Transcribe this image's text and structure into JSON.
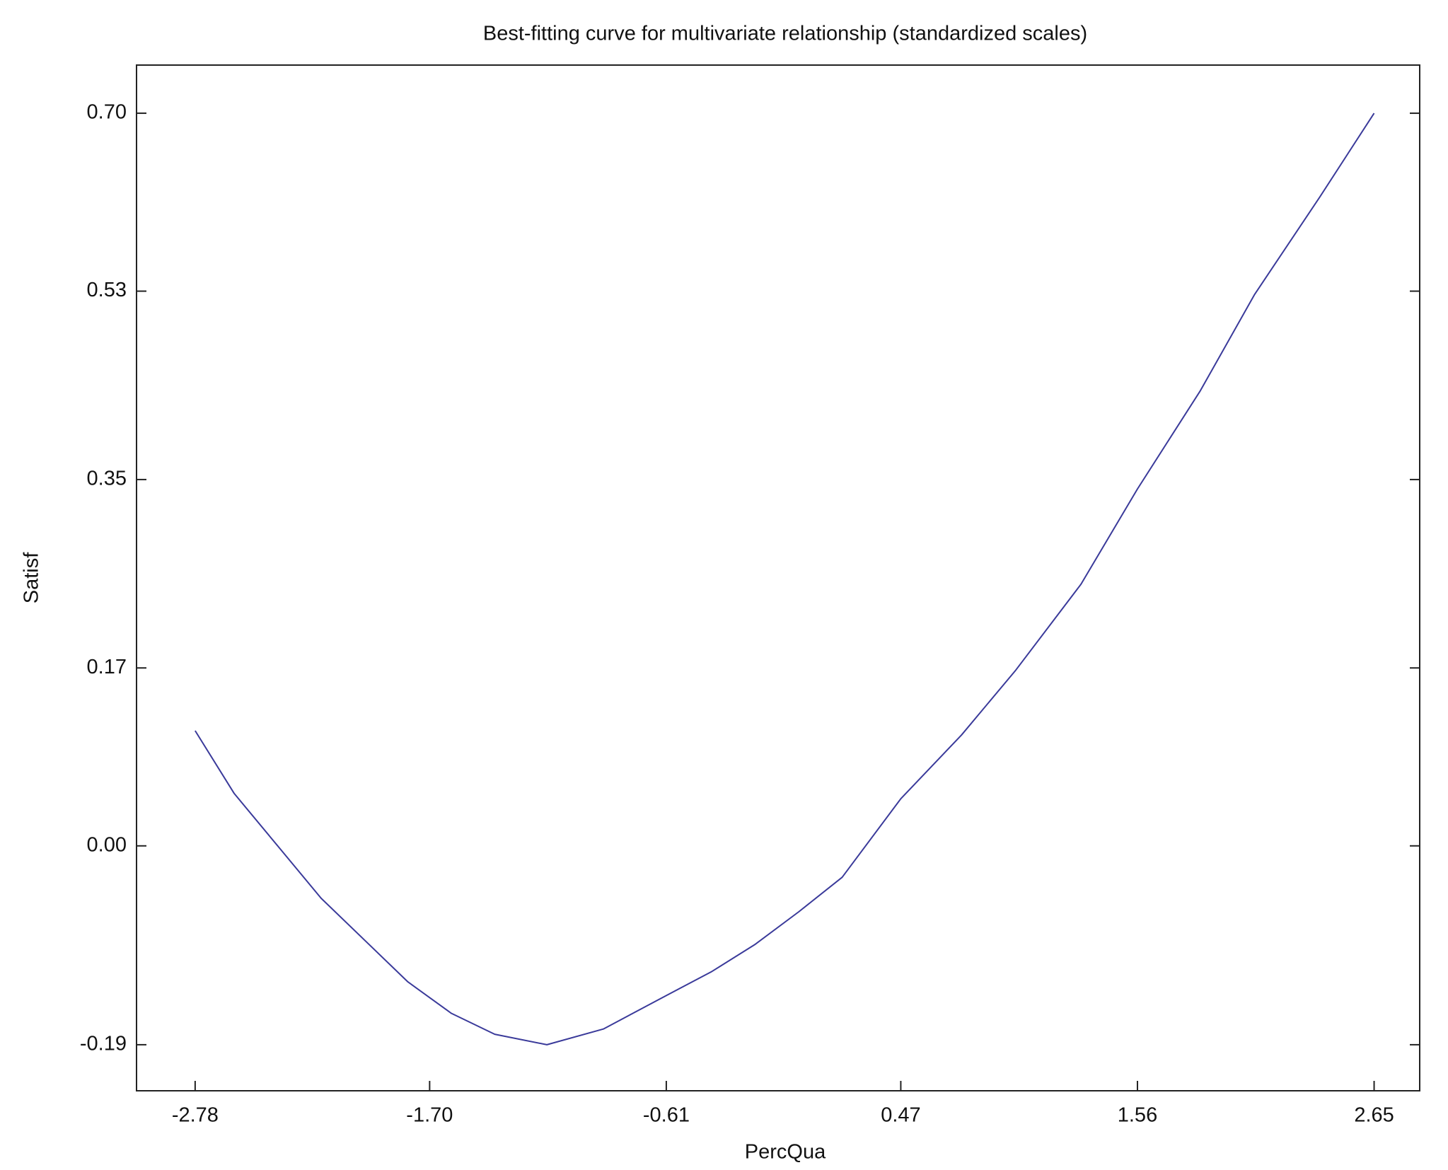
{
  "chart_data": {
    "type": "line",
    "title": "Best-fitting curve for multivariate relationship (standardized scales)",
    "x_label": "PercQua",
    "y_label": "Satisf",
    "x": [
      -2.78,
      -2.6,
      -2.4,
      -2.2,
      -2.0,
      -1.8,
      -1.6,
      -1.4,
      -1.16,
      -0.9,
      -0.61,
      -0.4,
      -0.2,
      0.0,
      0.2,
      0.47,
      0.75,
      1.0,
      1.3,
      1.56,
      1.85,
      2.1,
      2.4,
      2.65
    ],
    "series": [
      {
        "name": "Satisf",
        "color": "#3a3a9a",
        "values": [
          0.11,
          0.05,
          0.0,
          -0.05,
          -0.09,
          -0.13,
          -0.16,
          -0.18,
          -0.19,
          -0.175,
          -0.143,
          -0.12,
          -0.094,
          -0.063,
          -0.03,
          0.045,
          0.106,
          0.168,
          0.25,
          0.341,
          0.435,
          0.527,
          0.62,
          0.7
        ]
      }
    ],
    "xlim": [
      -3.05,
      2.86
    ],
    "ylim": [
      -0.234,
      0.746
    ],
    "xticks": [
      {
        "value": -2.78,
        "label": "-2.78"
      },
      {
        "value": -1.7,
        "label": "-1.70"
      },
      -0.61,
      0.47,
      1.56,
      2.65
    ],
    "yticks": [
      -0.19,
      {
        "value": 0,
        "label": "0.00"
      },
      0.17,
      0.35,
      0.53,
      {
        "value": 0.7,
        "label": "0.70"
      }
    ]
  }
}
